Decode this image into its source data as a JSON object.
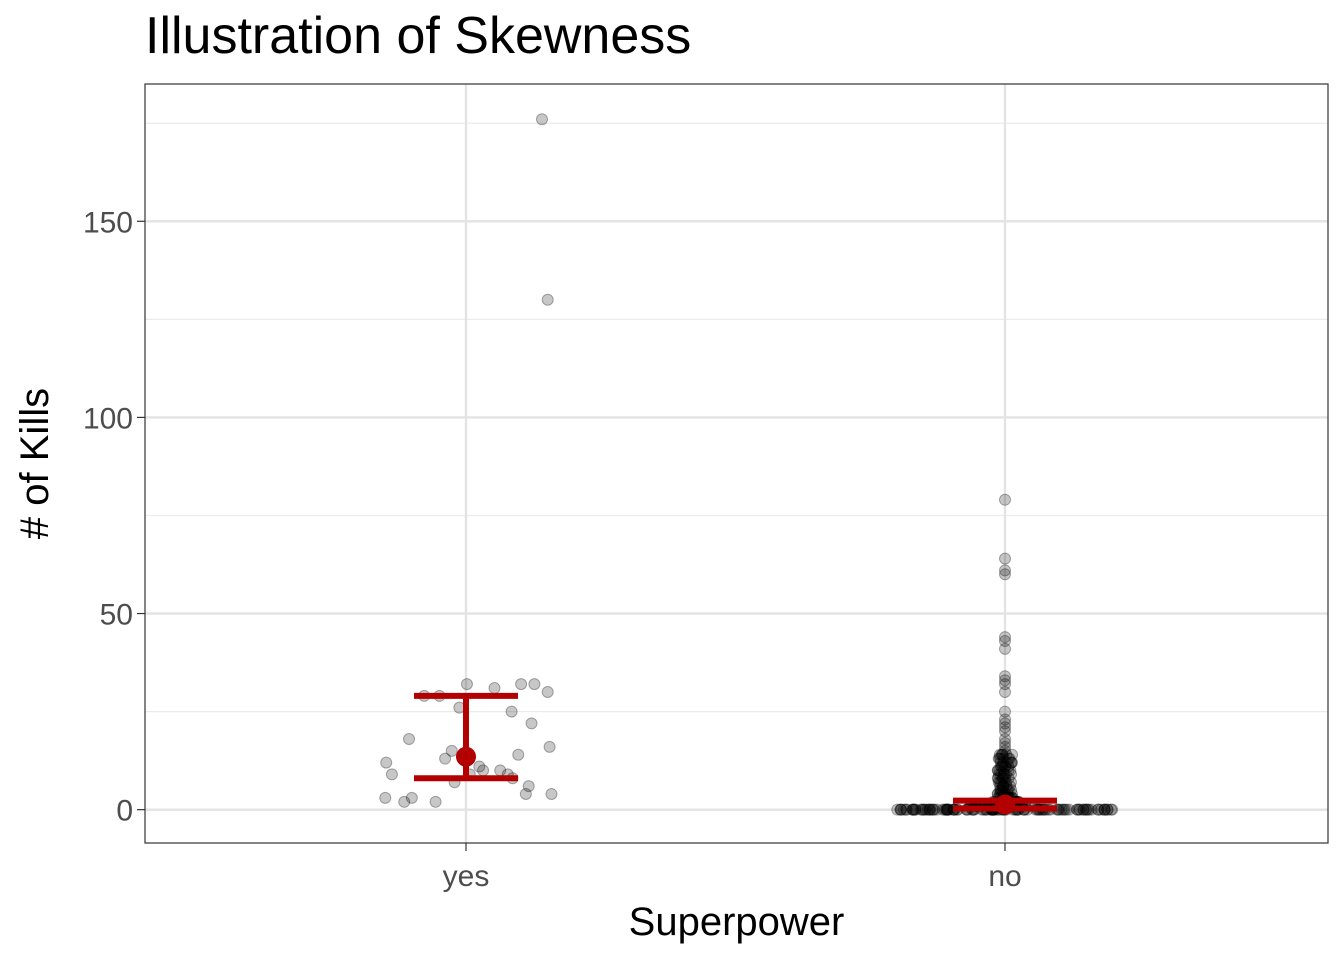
{
  "chart_data": {
    "type": "scatter",
    "title": "Illustration of Skewness",
    "xlabel": "Superpower",
    "ylabel": "# of Kills",
    "categories": [
      "yes",
      "no"
    ],
    "y_ticks": [
      0,
      50,
      100,
      150
    ],
    "ylim": [
      -8.5,
      185
    ],
    "grid": true,
    "point_color": "#000000",
    "point_opacity": 0.22,
    "summary_color": "#b30000",
    "series": [
      {
        "category": "yes",
        "jitter": [
          0.72,
          -0.44,
          0.01,
          0.58,
          -0.28,
          0.3,
          0.86,
          0.48,
          -0.07,
          0.69,
          -0.6,
          0.88,
          -0.15,
          0.55,
          -0.22,
          0.0,
          -0.84,
          0.14,
          0.36,
          0.44,
          -0.78,
          0.04,
          0.49,
          -0.12,
          0.66,
          0.63,
          0.9,
          -0.57,
          -0.85,
          -0.65,
          -0.32,
          0.8,
          0.86,
          0.18
        ],
        "values": [
          32,
          29,
          32,
          32,
          29,
          31,
          30,
          25,
          26,
          22,
          18,
          16,
          15,
          14,
          13,
          13,
          12,
          11,
          10,
          9,
          9,
          9,
          8,
          7,
          6,
          4,
          4,
          3,
          3,
          2,
          2,
          176,
          130,
          10
        ],
        "mean": 13.5,
        "error_low": 8,
        "error_high": 29
      },
      {
        "category": "no",
        "jitter": [
          0.0,
          0.0,
          0.0,
          0.0,
          0.0,
          0.0,
          0.0,
          0.0,
          0.0,
          0.0,
          0.0,
          0.0,
          0.0,
          0.0,
          0.0,
          0.0,
          0.0,
          0.0,
          0.0,
          0.0
        ],
        "values": [
          79,
          64,
          61,
          60,
          44,
          43,
          41,
          34,
          33,
          32,
          30,
          25,
          23,
          22,
          21,
          20,
          18,
          17,
          16,
          15
        ],
        "dense_band": {
          "min": 0,
          "max": 14
        },
        "mean": 1.3,
        "error_low": 0.3,
        "error_high": 2.3
      }
    ]
  }
}
